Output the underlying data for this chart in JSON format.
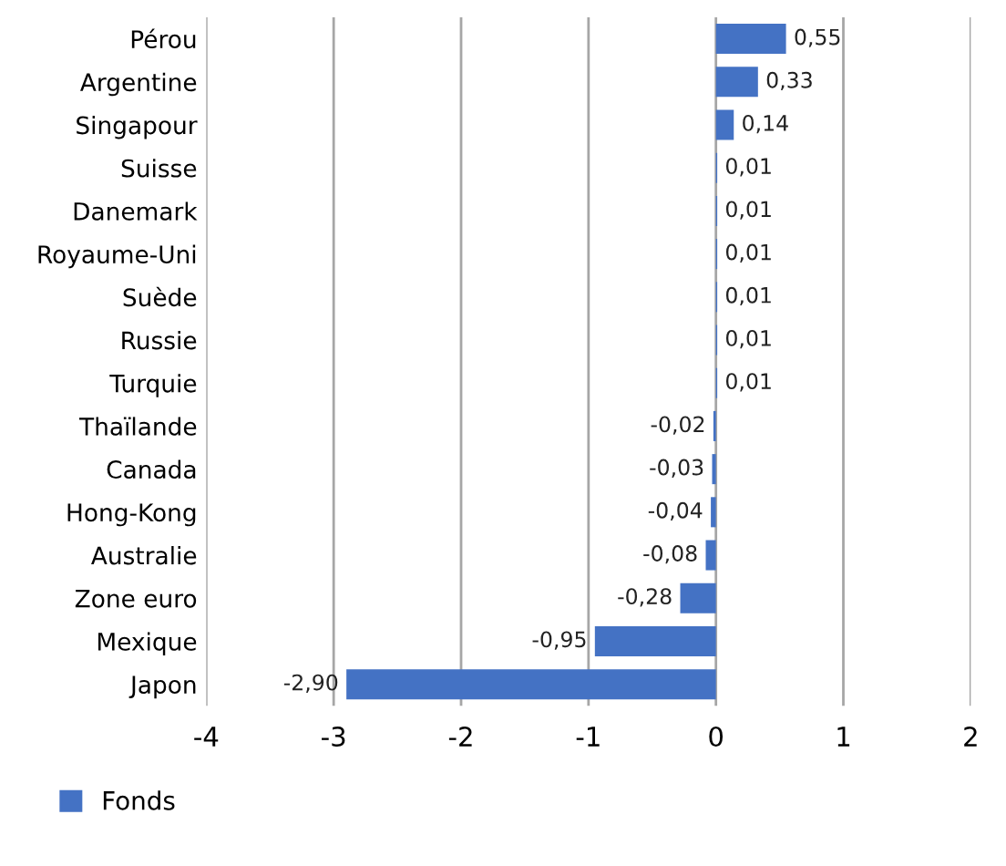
{
  "chart_data": {
    "type": "bar",
    "orientation": "horizontal",
    "categories": [
      "Pérou",
      "Argentine",
      "Singapour",
      "Suisse",
      "Danemark",
      "Royaume-Uni",
      "Suède",
      "Russie",
      "Turquie",
      "Thaïlande",
      "Canada",
      "Hong-Kong",
      "Australie",
      "Zone euro",
      "Mexique",
      "Japon"
    ],
    "series": [
      {
        "name": "Fonds",
        "color": "#4472c4",
        "values": [
          0.55,
          0.33,
          0.14,
          0.01,
          0.01,
          0.01,
          0.01,
          0.01,
          0.01,
          -0.02,
          -0.03,
          -0.04,
          -0.08,
          -0.28,
          -0.95,
          -2.9
        ],
        "value_labels": [
          "0,55",
          "0,33",
          "0,14",
          "0,01",
          "0,01",
          "0,01",
          "0,01",
          "0,01",
          "0,01",
          "-0,02",
          "-0,03",
          "-0,04",
          "-0,08",
          "-0,28",
          "-0,95",
          "-2,90"
        ]
      }
    ],
    "xlim": [
      -4,
      2
    ],
    "xticks": [
      {
        "value": -4,
        "label": "-4"
      },
      {
        "value": -3,
        "label": "-3"
      },
      {
        "value": -2,
        "label": "-2"
      },
      {
        "value": -1,
        "label": "-1"
      },
      0,
      1,
      2
    ],
    "grid": "x",
    "legend": "bottom left"
  }
}
